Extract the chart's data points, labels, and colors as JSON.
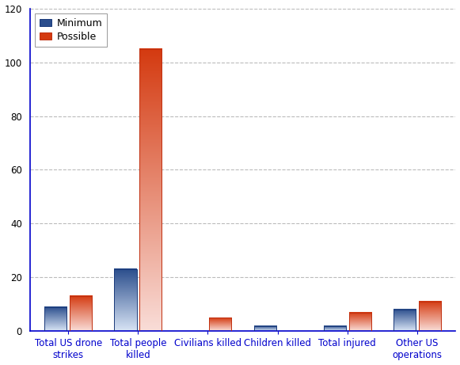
{
  "categories": [
    "Total US drone strikes",
    "Total people killed",
    "Civilians killed",
    "Children killed",
    "Total injured",
    "Other US operations"
  ],
  "minimum": [
    9,
    23,
    0,
    2,
    2,
    8
  ],
  "possible": [
    13,
    105,
    5,
    0,
    7,
    11
  ],
  "min_color_top": "#2a4d8c",
  "min_color_bottom": "#d8e4f5",
  "pos_color_top": "#d43a10",
  "pos_color_bottom": "#f9ddd8",
  "legend_min_label": "Minimum",
  "legend_pos_label": "Possible",
  "ylim": [
    0,
    120
  ],
  "yticks": [
    0,
    20,
    40,
    60,
    80,
    100,
    120
  ],
  "bar_width": 0.32,
  "bar_gap": 0.04,
  "background_color": "#ffffff",
  "grid_color": "#bbbbbb",
  "spine_color": "#0000cc",
  "tick_label_fontsize": 8.5,
  "legend_fontsize": 9,
  "bar_edge_color_blue": "#1a3a7a",
  "bar_edge_color_red": "#c03010"
}
